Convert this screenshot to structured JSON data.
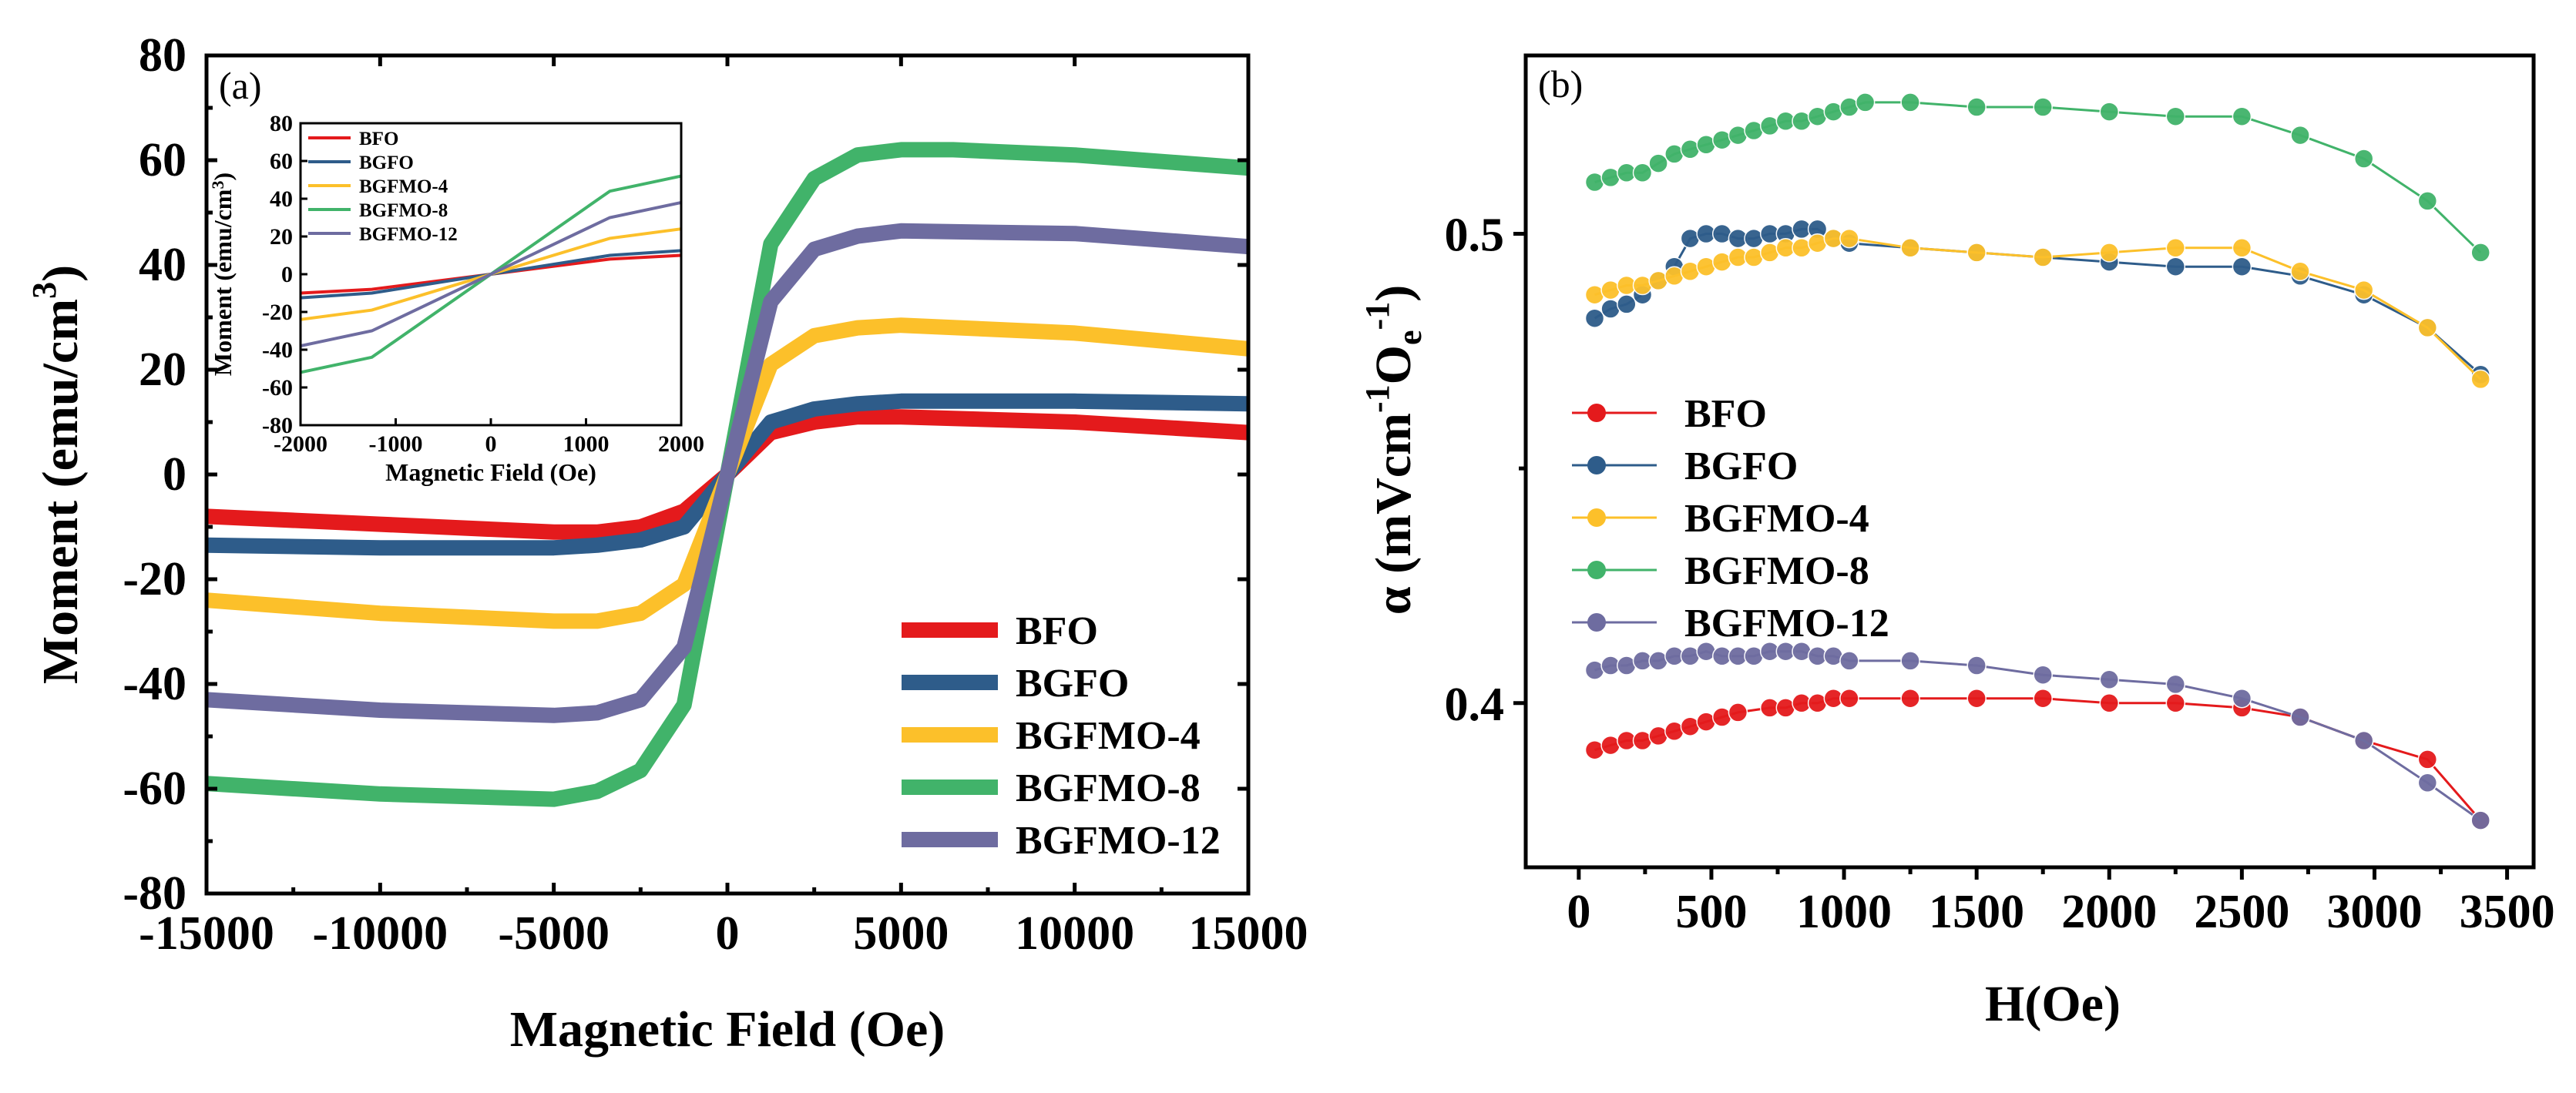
{
  "chart_data": [
    {
      "type": "line",
      "panel_label": "(a)",
      "xlabel": "Magnetic Field (Oe)",
      "ylabel_parts": [
        "Moment (emu/cm",
        "3",
        ")"
      ],
      "xlim": [
        -15000,
        15000
      ],
      "ylim": [
        -80,
        80
      ],
      "xticks": [
        -15000,
        -10000,
        -5000,
        0,
        5000,
        10000,
        15000
      ],
      "xtick_labels": [
        "-15000",
        "-10000",
        "-5000",
        "0",
        "5000",
        "10000",
        "15000"
      ],
      "yticks": [
        -80,
        -60,
        -40,
        -20,
        0,
        20,
        40,
        60,
        80
      ],
      "ytick_labels": [
        "-80",
        "-60",
        "-40",
        "-20",
        "0",
        "20",
        "40",
        "60",
        "80"
      ],
      "legend_position": "bottom-right",
      "series": [
        {
          "name": "BFO",
          "color": "#e41a1c",
          "x": [
            -15000,
            -10000,
            -5000,
            -3750,
            -2500,
            -1250,
            0,
            1250,
            2500,
            3750,
            5000,
            10000,
            15000
          ],
          "y": [
            -8,
            -9.5,
            -11,
            -11,
            -10,
            -7,
            0,
            8,
            10,
            11,
            11,
            10,
            8
          ]
        },
        {
          "name": "BGFO",
          "color": "#2e5c8a",
          "x": [
            -15000,
            -10000,
            -5000,
            -3750,
            -2500,
            -1250,
            0,
            1250,
            2500,
            3750,
            5000,
            10000,
            15000
          ],
          "y": [
            -13.5,
            -14,
            -14,
            -13.5,
            -12.5,
            -10,
            0,
            10,
            12.5,
            13.5,
            14,
            14,
            13.5
          ]
        },
        {
          "name": "BGFMO-4",
          "color": "#fcc02a",
          "x": [
            -15000,
            -10000,
            -5000,
            -3750,
            -2500,
            -1250,
            0,
            1250,
            2500,
            3750,
            5000,
            10000,
            15000
          ],
          "y": [
            -24,
            -26.5,
            -28,
            -28,
            -26.5,
            -21,
            0,
            21,
            26.5,
            28,
            28.5,
            27,
            24
          ]
        },
        {
          "name": "BGFMO-8",
          "color": "#41b36a",
          "x": [
            -15000,
            -10000,
            -5000,
            -3750,
            -2500,
            -1250,
            0,
            1250,
            2500,
            3750,
            5000,
            6500,
            10000,
            15000
          ],
          "y": [
            -59,
            -61,
            -62,
            -60.5,
            -56.5,
            -44,
            0,
            44,
            56.5,
            61,
            62,
            62,
            61,
            58.5
          ]
        },
        {
          "name": "BGFMO-12",
          "color": "#6e6ca0",
          "x": [
            -15000,
            -10000,
            -5000,
            -3750,
            -2500,
            -1250,
            0,
            1250,
            2500,
            3750,
            5000,
            10000,
            15000
          ],
          "y": [
            -43,
            -45,
            -46,
            -45.5,
            -43,
            -33,
            0,
            33,
            43,
            45.5,
            46.5,
            46,
            43.5
          ]
        }
      ],
      "inset": {
        "xlabel": "Magnetic Field (Oe)",
        "ylabel_parts": [
          "Moment (emu/cm",
          "3",
          ")"
        ],
        "xlim": [
          -2000,
          2000
        ],
        "ylim": [
          -80,
          80
        ],
        "xticks": [
          -2000,
          -1000,
          0,
          1000,
          2000
        ],
        "xtick_labels": [
          "-2000",
          "-1000",
          "0",
          "1000",
          "2000"
        ],
        "yticks": [
          -80,
          -60,
          -40,
          -20,
          0,
          20,
          40,
          60,
          80
        ],
        "ytick_labels": [
          "-80",
          "-60",
          "-40",
          "-20",
          "0",
          "20",
          "40",
          "60",
          "80"
        ],
        "legend_position": "top-left",
        "series": [
          {
            "name": "BFO",
            "color": "#e41a1c",
            "x": [
              -2000,
              -1250,
              0,
              1250,
              2000
            ],
            "y": [
              -10,
              -8,
              0,
              8,
              10
            ]
          },
          {
            "name": "BGFO",
            "color": "#2e5c8a",
            "x": [
              -2000,
              -1250,
              0,
              1250,
              2000
            ],
            "y": [
              -12.5,
              -10,
              0,
              10,
              12.5
            ]
          },
          {
            "name": "BGFMO-4",
            "color": "#fcc02a",
            "x": [
              -2000,
              -1250,
              0,
              1250,
              2000
            ],
            "y": [
              -24,
              -19,
              0,
              19,
              24
            ]
          },
          {
            "name": "BGFMO-8",
            "color": "#41b36a",
            "x": [
              -2000,
              -1250,
              0,
              1250,
              2000
            ],
            "y": [
              -52,
              -44,
              0,
              44,
              52
            ]
          },
          {
            "name": "BGFMO-12",
            "color": "#6e6ca0",
            "x": [
              -2000,
              -1250,
              0,
              1250,
              2000
            ],
            "y": [
              -38,
              -30,
              0,
              30,
              38
            ]
          }
        ]
      }
    },
    {
      "type": "line",
      "marker": "circle",
      "panel_label": "(b)",
      "xlabel": "H(Oe)",
      "ylabel_parts": [
        "α (mVcm",
        "-1",
        "O",
        "e",
        "-1",
        ")"
      ],
      "xlim": [
        -200,
        3600
      ],
      "ylim": [
        0.365,
        0.538
      ],
      "xticks": [
        0,
        500,
        1000,
        1500,
        2000,
        2500,
        3000,
        3500
      ],
      "xtick_labels": [
        "0",
        "500",
        "1000",
        "1500",
        "2000",
        "2500",
        "3000",
        "3500"
      ],
      "yticks": [
        0.4,
        0.5
      ],
      "ytick_labels": [
        "0.4",
        "0.5"
      ],
      "legend_position": "center-left",
      "series": [
        {
          "name": "BFO",
          "color": "#e41a1c",
          "x": [
            60,
            120,
            180,
            240,
            300,
            360,
            420,
            480,
            540,
            600,
            720,
            780,
            840,
            900,
            960,
            1020,
            1250,
            1500,
            1750,
            2000,
            2250,
            2500,
            2720,
            2960,
            3200,
            3400
          ],
          "y": [
            0.39,
            0.391,
            0.392,
            0.392,
            0.393,
            0.394,
            0.395,
            0.396,
            0.397,
            0.398,
            0.399,
            0.399,
            0.4,
            0.4,
            0.401,
            0.401,
            0.401,
            0.401,
            0.401,
            0.4,
            0.4,
            0.399,
            0.397,
            0.392,
            0.388,
            0.375
          ]
        },
        {
          "name": "BGFO",
          "color": "#2e5c8a",
          "x": [
            60,
            120,
            180,
            240,
            300,
            360,
            420,
            480,
            540,
            600,
            660,
            720,
            780,
            840,
            900,
            960,
            1020,
            1250,
            1500,
            1750,
            2000,
            2250,
            2500,
            2720,
            2960,
            3200,
            3400
          ],
          "y": [
            0.482,
            0.484,
            0.485,
            0.487,
            0.49,
            0.493,
            0.499,
            0.5,
            0.5,
            0.499,
            0.499,
            0.5,
            0.5,
            0.501,
            0.501,
            0.499,
            0.498,
            0.497,
            0.496,
            0.495,
            0.494,
            0.493,
            0.493,
            0.491,
            0.487,
            0.48,
            0.47
          ]
        },
        {
          "name": "BGFMO-4",
          "color": "#fcc02a",
          "x": [
            60,
            120,
            180,
            240,
            300,
            360,
            420,
            480,
            540,
            600,
            660,
            720,
            780,
            840,
            900,
            960,
            1020,
            1250,
            1500,
            1750,
            2000,
            2250,
            2500,
            2720,
            2960,
            3200,
            3400
          ],
          "y": [
            0.487,
            0.488,
            0.489,
            0.489,
            0.49,
            0.491,
            0.492,
            0.493,
            0.494,
            0.495,
            0.495,
            0.496,
            0.497,
            0.497,
            0.498,
            0.499,
            0.499,
            0.497,
            0.496,
            0.495,
            0.496,
            0.497,
            0.497,
            0.492,
            0.488,
            0.48,
            0.469
          ]
        },
        {
          "name": "BGFMO-8",
          "color": "#41b36a",
          "x": [
            60,
            120,
            180,
            240,
            300,
            360,
            420,
            480,
            540,
            600,
            660,
            720,
            780,
            840,
            900,
            960,
            1020,
            1080,
            1250,
            1500,
            1750,
            2000,
            2250,
            2500,
            2720,
            2960,
            3200,
            3400
          ],
          "y": [
            0.511,
            0.512,
            0.513,
            0.513,
            0.515,
            0.517,
            0.518,
            0.519,
            0.52,
            0.521,
            0.522,
            0.523,
            0.524,
            0.524,
            0.525,
            0.526,
            0.527,
            0.528,
            0.528,
            0.527,
            0.527,
            0.526,
            0.525,
            0.525,
            0.521,
            0.516,
            0.507,
            0.496
          ]
        },
        {
          "name": "BGFMO-12",
          "color": "#6e6ca0",
          "x": [
            60,
            120,
            180,
            240,
            300,
            360,
            420,
            480,
            540,
            600,
            660,
            720,
            780,
            840,
            900,
            960,
            1020,
            1250,
            1500,
            1750,
            2000,
            2250,
            2500,
            2720,
            2960,
            3200,
            3400
          ],
          "y": [
            0.407,
            0.408,
            0.408,
            0.409,
            0.409,
            0.41,
            0.41,
            0.411,
            0.41,
            0.41,
            0.41,
            0.411,
            0.411,
            0.411,
            0.41,
            0.41,
            0.409,
            0.409,
            0.408,
            0.406,
            0.405,
            0.404,
            0.401,
            0.397,
            0.392,
            0.383,
            0.375
          ]
        }
      ]
    }
  ]
}
